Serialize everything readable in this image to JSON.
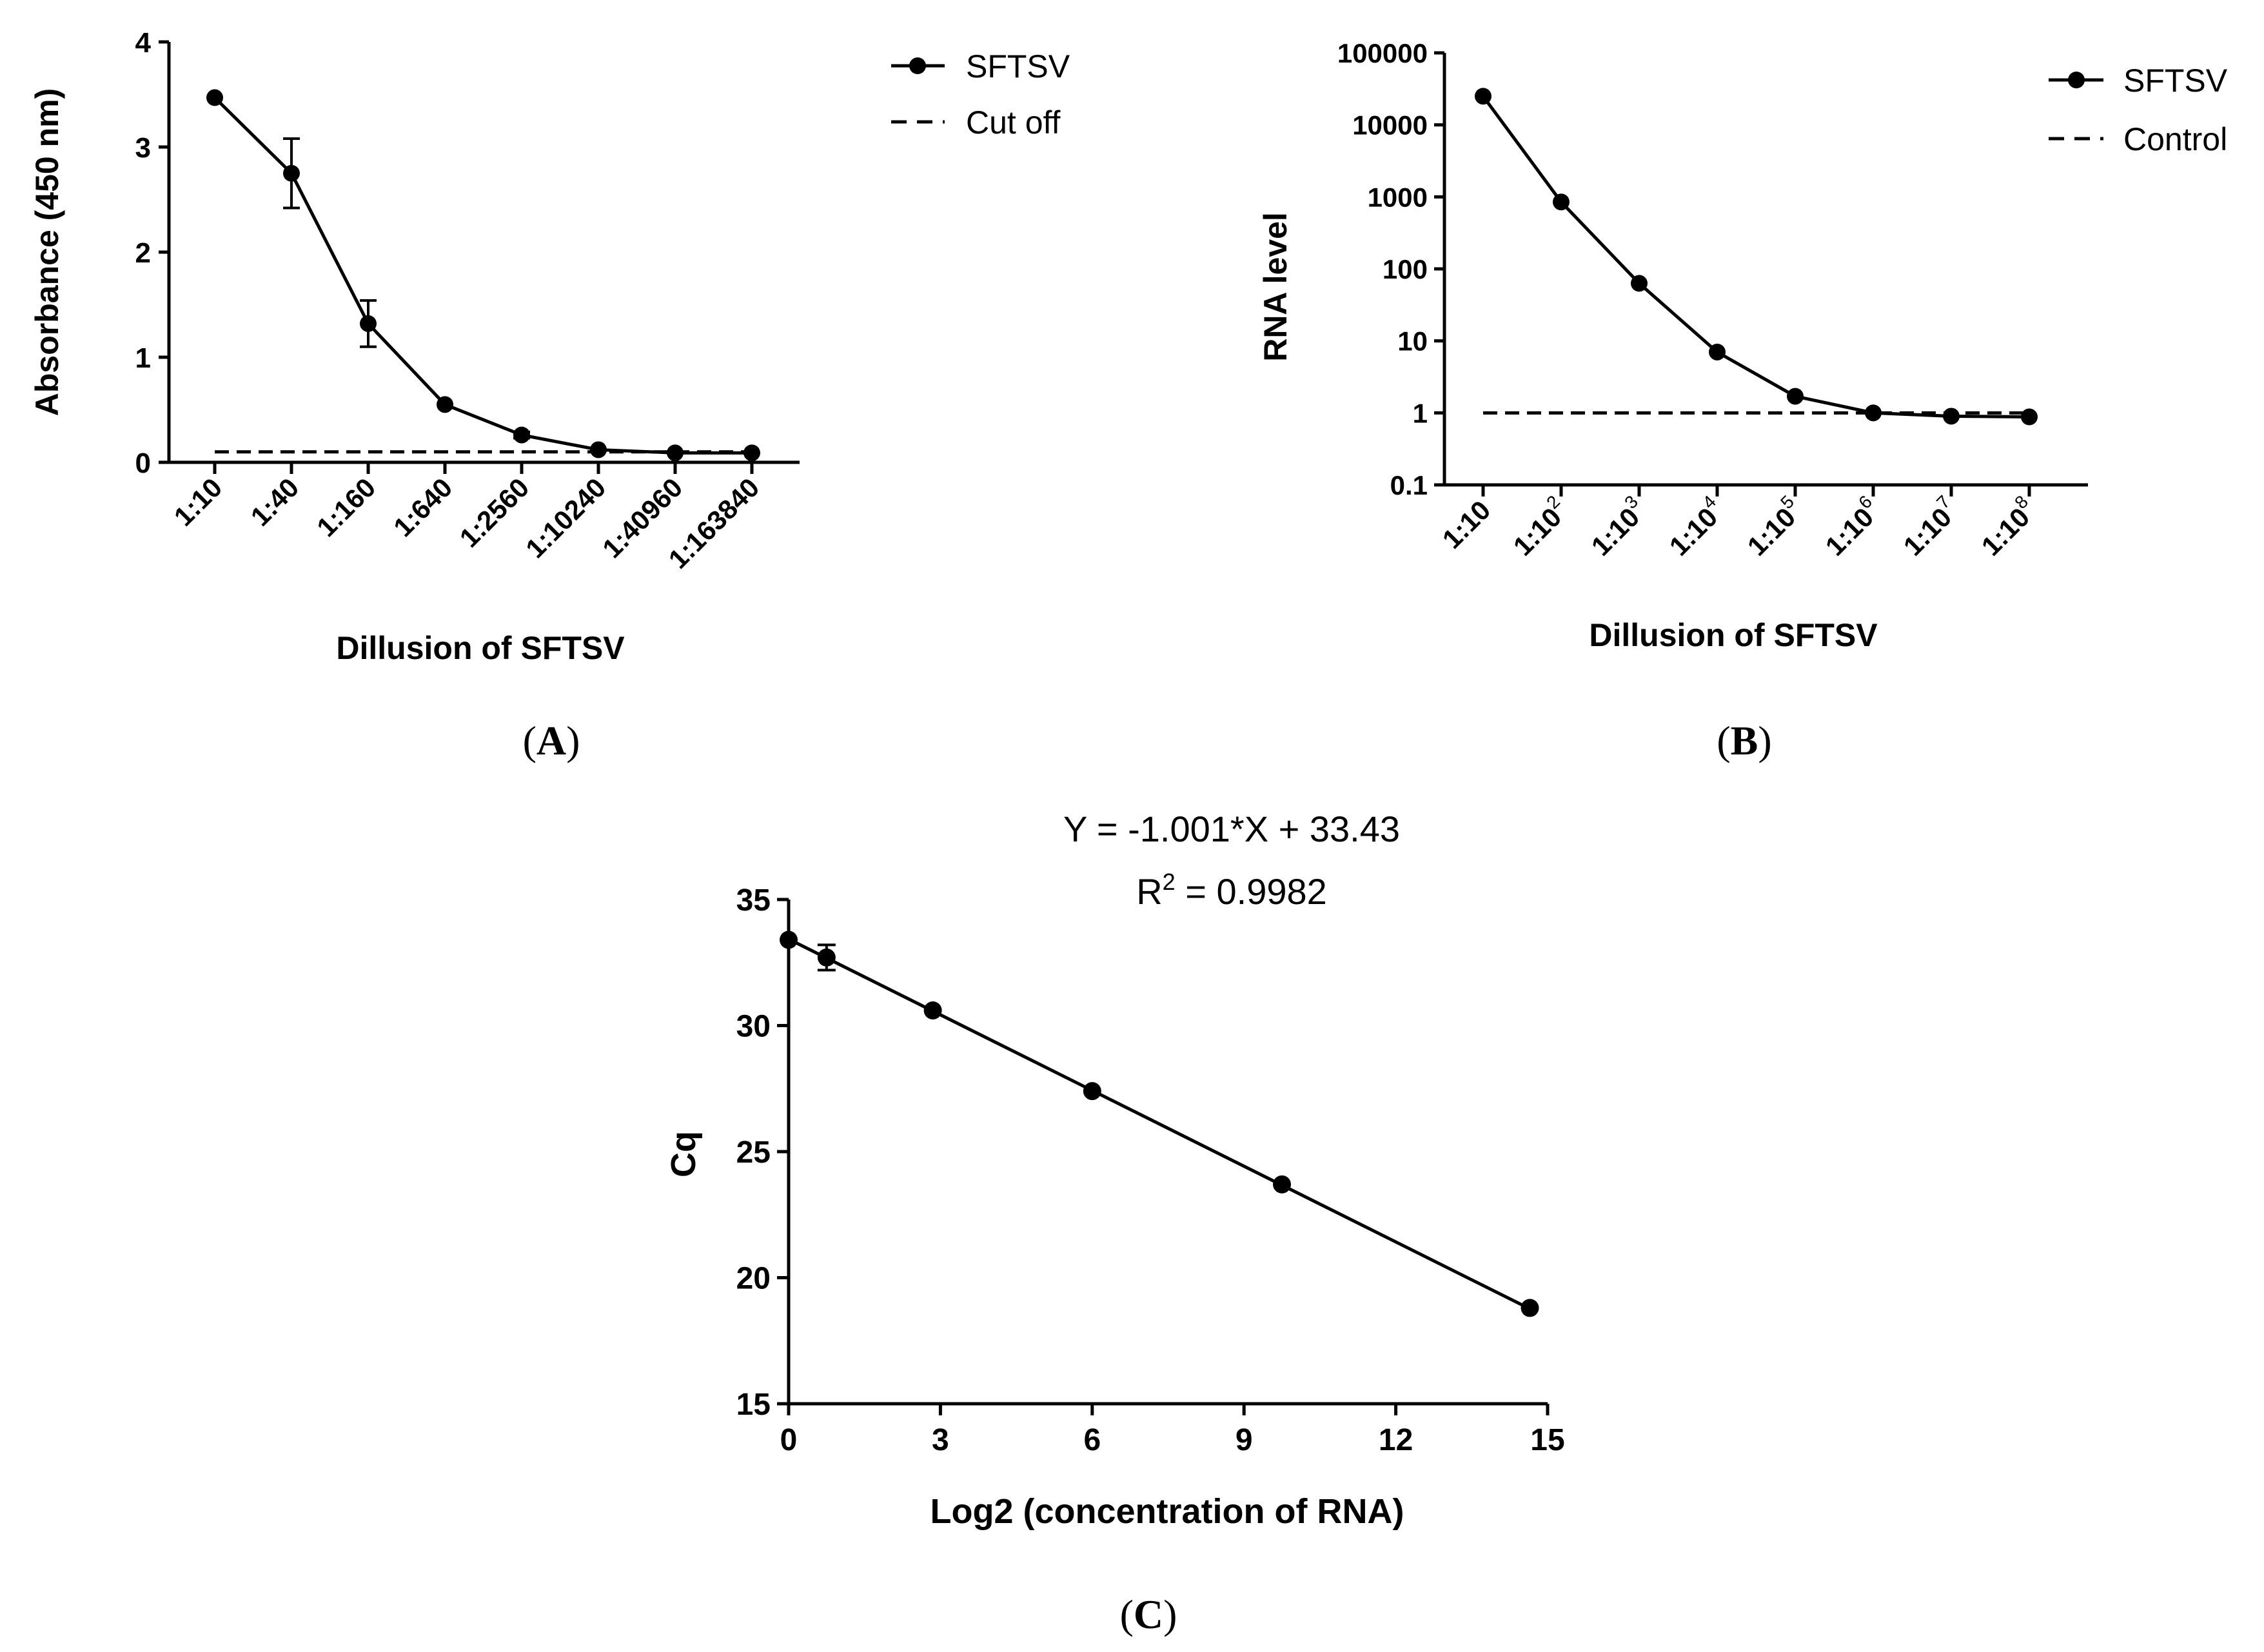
{
  "chart_data": [
    {
      "panel": "(A)",
      "type": "line",
      "xlabel": "Dillusion of SFTSV",
      "ylabel": "Absorbance (450 nm)",
      "categories": [
        "1:10",
        "1:40",
        "1:160",
        "1:640",
        "1:2560",
        "1:10240",
        "1:40960",
        "1:163840"
      ],
      "ylim": [
        0,
        4
      ],
      "yticks": [
        "0",
        "1",
        "2",
        "3",
        "4"
      ],
      "series": [
        {
          "name": "SFTSV",
          "style": "solid-circle",
          "values": [
            3.47,
            2.75,
            1.32,
            0.55,
            0.26,
            0.12,
            0.09,
            0.09
          ],
          "errors": [
            0,
            0.33,
            0.22,
            0,
            0.03,
            0,
            0,
            0
          ]
        },
        {
          "name": "Cut off",
          "style": "dashed",
          "values": [
            0.1,
            0.1,
            0.1,
            0.1,
            0.1,
            0.1,
            0.1,
            0.1
          ]
        }
      ],
      "legend": "top-right outside"
    },
    {
      "panel": "(B)",
      "type": "line",
      "xlabel": "Dillusion of SFTSV",
      "ylabel": "RNA level",
      "yscale": "log",
      "categories": [
        {
          "base": "1:10",
          "exp": ""
        },
        {
          "base": "1:10",
          "exp": "2"
        },
        {
          "base": "1:10",
          "exp": "3"
        },
        {
          "base": "1:10",
          "exp": "4"
        },
        {
          "base": "1:10",
          "exp": "5"
        },
        {
          "base": "1:10",
          "exp": "6"
        },
        {
          "base": "1:10",
          "exp": "7"
        },
        {
          "base": "1:10",
          "exp": "8"
        }
      ],
      "ylim": [
        0.1,
        100000
      ],
      "yticks": [
        "0.1",
        "1",
        "10",
        "100",
        "1000",
        "10000",
        "100000"
      ],
      "series": [
        {
          "name": "SFTSV",
          "style": "solid-circle",
          "values": [
            25000,
            850,
            63,
            7,
            1.7,
            1.0,
            0.9,
            0.88
          ]
        },
        {
          "name": "Control",
          "style": "dashed",
          "values": [
            1,
            1,
            1,
            1,
            1,
            1,
            1,
            1
          ]
        }
      ],
      "legend": "top-right"
    },
    {
      "panel": "(C)",
      "type": "scatter",
      "xlabel": "Log2 (concentration of RNA)",
      "ylabel": "Cq",
      "xlim": [
        0,
        15
      ],
      "ylim": [
        15,
        35
      ],
      "xticks": [
        "0",
        "3",
        "6",
        "9",
        "12",
        "15"
      ],
      "yticks": [
        "15",
        "20",
        "25",
        "30",
        "35"
      ],
      "points": [
        {
          "x": 0,
          "y": 33.4,
          "err": 0
        },
        {
          "x": 0.75,
          "y": 32.7,
          "err": 0.5
        },
        {
          "x": 2.85,
          "y": 30.6,
          "err": 0
        },
        {
          "x": 6.0,
          "y": 27.4,
          "err": 0
        },
        {
          "x": 9.75,
          "y": 23.7,
          "err": 0
        },
        {
          "x": 14.65,
          "y": 18.8,
          "err": 0
        }
      ],
      "fit": {
        "slope": -1.001,
        "intercept": 33.43
      },
      "equation": "Y = -1.001*X + 33.43",
      "r2_prefix": "R",
      "r2_exp": "2",
      "r2_value": " = 0.9982"
    }
  ],
  "legend_a": {
    "item1": "SFTSV",
    "item2": "Cut off"
  },
  "legend_b": {
    "item1": "SFTSV",
    "item2": "Control"
  },
  "labels": {
    "a_open": "(",
    "a_letter": "A",
    "a_close": ")",
    "b_open": "(",
    "b_letter": "B",
    "b_close": ")",
    "c_open": "(",
    "c_letter": "C",
    "c_close": ")"
  }
}
